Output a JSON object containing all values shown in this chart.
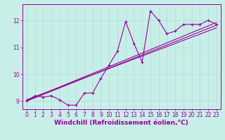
{
  "title": "",
  "xlabel": "Windchill (Refroidissement éolien,°C)",
  "ylabel": "",
  "bg_color": "#c8eee8",
  "line_color": "#990099",
  "grid_color": "#aadddd",
  "xlim": [
    -0.5,
    23.5
  ],
  "ylim": [
    8.7,
    12.6
  ],
  "xticks": [
    0,
    1,
    2,
    3,
    4,
    5,
    6,
    7,
    8,
    9,
    10,
    11,
    12,
    13,
    14,
    15,
    16,
    17,
    18,
    19,
    20,
    21,
    22,
    23
  ],
  "yticks": [
    9,
    10,
    11,
    12
  ],
  "data_x": [
    0,
    1,
    2,
    3,
    4,
    5,
    6,
    7,
    8,
    9,
    10,
    11,
    12,
    13,
    14,
    15,
    16,
    17,
    18,
    19,
    20,
    21,
    22,
    23
  ],
  "data_y": [
    9.0,
    9.2,
    9.15,
    9.2,
    9.05,
    8.85,
    8.85,
    9.3,
    9.3,
    9.85,
    10.35,
    10.85,
    11.95,
    11.15,
    10.45,
    12.35,
    12.0,
    11.5,
    11.6,
    11.85,
    11.85,
    11.85,
    12.0,
    11.85
  ],
  "trend1_x": [
    0,
    23
  ],
  "trend1_y": [
    9.0,
    11.82
  ],
  "trend2_x": [
    0,
    23
  ],
  "trend2_y": [
    9.02,
    11.92
  ],
  "trend3_x": [
    0,
    23
  ],
  "trend3_y": [
    9.05,
    11.72
  ],
  "tick_fontsize": 5.5,
  "xlabel_fontsize": 6.5
}
